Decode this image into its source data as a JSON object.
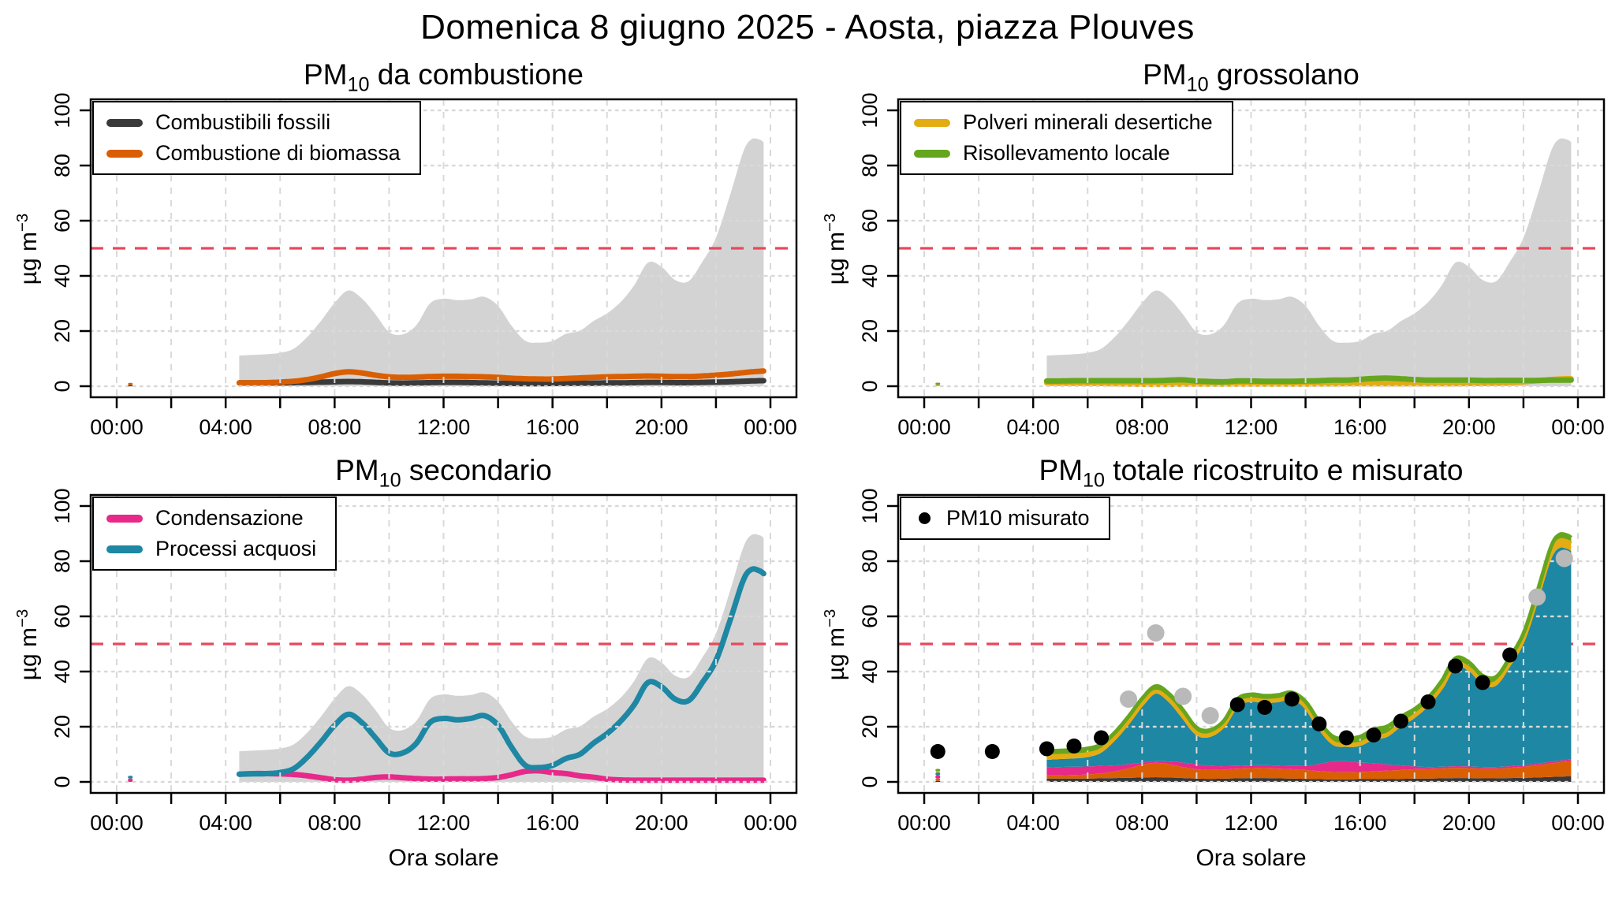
{
  "main_title": "Domenica 8 giugno 2025 - Aosta, piazza Plouves",
  "axis": {
    "x_label": "Ora solare",
    "y_label_base": "µg m",
    "y_label_exp": "−3",
    "y_ticks": [
      0,
      20,
      40,
      60,
      80,
      100
    ],
    "y_max": 100,
    "x_tick_hours": [
      0,
      2,
      4,
      6,
      8,
      10,
      12,
      14,
      16,
      18,
      20,
      22,
      24
    ],
    "x_label_hours": [
      0,
      4,
      8,
      12,
      16,
      20,
      24
    ],
    "x_tick_labels": [
      "00:00",
      "04:00",
      "08:00",
      "12:00",
      "16:00",
      "20:00",
      "00:00"
    ],
    "threshold_value": 50
  },
  "colors": {
    "envelope": "#d3d3d3",
    "threshold": "#e8485c",
    "grid": "#d9d9d9",
    "border": "#000000",
    "measured_black": "#000000",
    "measured_gray": "#b9b9b9"
  },
  "chart_data": {
    "type": "area",
    "x_hours": [
      4.5,
      5,
      5.5,
      6,
      6.5,
      7,
      7.5,
      8,
      8.5,
      9,
      9.5,
      10,
      10.5,
      11,
      11.5,
      12,
      12.5,
      13,
      13.5,
      14,
      14.5,
      15,
      15.5,
      16,
      16.5,
      17,
      17.5,
      18,
      18.5,
      19,
      19.5,
      20,
      20.5,
      21,
      21.5,
      22,
      22.5,
      23,
      23.3,
      23.6,
      23.75
    ],
    "series": {
      "fossili": {
        "label": "Combustibili fossili",
        "color": "#3a3a3a",
        "values": [
          1.2,
          1.2,
          1.2,
          1.2,
          1.3,
          1.4,
          1.5,
          1.6,
          1.7,
          1.6,
          1.4,
          1.2,
          1.1,
          1.2,
          1.3,
          1.4,
          1.4,
          1.3,
          1.2,
          1.1,
          1.0,
          0.9,
          0.9,
          1.0,
          1.0,
          1.1,
          1.1,
          1.2,
          1.2,
          1.3,
          1.4,
          1.4,
          1.3,
          1.3,
          1.4,
          1.5,
          1.6,
          1.8,
          1.9,
          2.0,
          2.0
        ]
      },
      "biomassa": {
        "label": "Combustione di biomassa",
        "color": "#d95f02",
        "values": [
          1.2,
          1.2,
          1.3,
          1.5,
          1.8,
          2.4,
          3.4,
          4.6,
          5.2,
          4.8,
          4.0,
          3.4,
          3.2,
          3.3,
          3.5,
          3.6,
          3.6,
          3.5,
          3.4,
          3.2,
          2.9,
          2.7,
          2.6,
          2.6,
          2.8,
          3.0,
          3.2,
          3.4,
          3.5,
          3.6,
          3.7,
          3.6,
          3.5,
          3.5,
          3.7,
          4.0,
          4.4,
          4.9,
          5.2,
          5.4,
          5.5
        ]
      },
      "desertiche": {
        "label": "Polveri minerali desertiche",
        "color": "#e3ac13",
        "values": [
          1.2,
          1.15,
          1.1,
          1.1,
          1.0,
          0.9,
          0.8,
          0.7,
          0.7,
          0.7,
          0.75,
          0.8,
          0.8,
          0.8,
          0.8,
          0.8,
          0.8,
          0.8,
          0.8,
          0.8,
          0.85,
          0.85,
          0.9,
          0.9,
          0.9,
          0.9,
          0.9,
          0.9,
          0.9,
          0.9,
          0.9,
          1.0,
          1.0,
          1.1,
          1.3,
          1.6,
          2.0,
          2.4,
          2.6,
          2.7,
          2.7
        ]
      },
      "risollevamento": {
        "label": "Risollevamento locale",
        "color": "#66a61e",
        "values": [
          1.9,
          1.9,
          2.0,
          2.0,
          2.0,
          2.0,
          2.0,
          2.0,
          2.0,
          2.2,
          2.3,
          1.9,
          1.7,
          1.6,
          1.9,
          1.9,
          1.8,
          1.8,
          1.8,
          1.9,
          2.0,
          2.2,
          2.2,
          2.5,
          2.8,
          2.9,
          2.7,
          2.4,
          2.2,
          2.2,
          2.2,
          2.2,
          2.1,
          2.1,
          2.1,
          2.1,
          2.1,
          2.2,
          2.2,
          2.2,
          2.2
        ]
      },
      "condensazione": {
        "label": "Condensazione",
        "color": "#e7298a",
        "values": [
          2.8,
          3.0,
          3.0,
          2.9,
          2.7,
          2.2,
          1.5,
          0.8,
          0.6,
          1.0,
          1.6,
          1.8,
          1.5,
          1.2,
          1.0,
          1.0,
          1.1,
          1.1,
          1.2,
          1.6,
          2.6,
          3.8,
          4.0,
          3.4,
          3.0,
          2.2,
          1.7,
          1.0,
          0.7,
          0.6,
          0.6,
          0.6,
          0.6,
          0.6,
          0.6,
          0.6,
          0.6,
          0.6,
          0.6,
          0.6,
          0.6
        ]
      },
      "acquosi": {
        "label": "Processi acquosi",
        "color": "#1e87a3",
        "values": [
          2.8,
          2.9,
          3.0,
          3.4,
          4.8,
          9.0,
          14.5,
          20.5,
          24.5,
          21.5,
          16.0,
          10.5,
          10.5,
          14.0,
          21.5,
          23.0,
          22.5,
          23.0,
          24.0,
          20.5,
          12.5,
          6.0,
          5.2,
          6.0,
          8.5,
          10.0,
          14.0,
          17.5,
          22.0,
          28.0,
          36.0,
          34.5,
          30.0,
          29.5,
          36.0,
          44.0,
          58.0,
          73.0,
          77.0,
          76.5,
          75.5
        ]
      }
    },
    "stack_order": [
      "fossili",
      "biomassa",
      "condensazione",
      "acquosi",
      "desertiche",
      "risollevamento"
    ],
    "early_point": {
      "hour": 0.5,
      "values": {
        "fossili": 0.4,
        "biomassa": 0.8,
        "condensazione": 1.2,
        "acquosi": 1.0,
        "desertiche": 0.5,
        "risollevamento": 0.8
      }
    },
    "measured": {
      "label": "PM10 misurato",
      "hours": [
        0.5,
        2.5,
        4.5,
        5.5,
        6.5,
        7.5,
        8.5,
        9.5,
        10.5,
        11.5,
        12.5,
        13.5,
        14.5,
        15.5,
        16.5,
        17.5,
        18.5,
        19.5,
        20.5,
        21.5,
        22.5,
        23.5
      ],
      "values": [
        11,
        11,
        12,
        13,
        16,
        30,
        54,
        31,
        24,
        28,
        27,
        30,
        21,
        16,
        17,
        22,
        29,
        42,
        36,
        46,
        67,
        81
      ],
      "flags": [
        "black",
        "black",
        "black",
        "black",
        "black",
        "gray",
        "gray",
        "gray",
        "gray",
        "black",
        "black",
        "black",
        "black",
        "black",
        "black",
        "black",
        "black",
        "black",
        "black",
        "black",
        "gray",
        "gray"
      ]
    },
    "panels": [
      {
        "title_pm": "PM",
        "title_sub": "10",
        "title_rest": " da combustione",
        "mode": "lines",
        "series": [
          "fossili",
          "biomassa"
        ],
        "envelope": true
      },
      {
        "title_pm": "PM",
        "title_sub": "10",
        "title_rest": " grossolano",
        "mode": "lines",
        "series": [
          "desertiche",
          "risollevamento"
        ],
        "envelope": true
      },
      {
        "title_pm": "PM",
        "title_sub": "10",
        "title_rest": " secondario",
        "mode": "lines",
        "series": [
          "condensazione",
          "acquosi"
        ],
        "envelope": true
      },
      {
        "title_pm": "PM",
        "title_sub": "10",
        "title_rest": " totale ricostruito e misurato",
        "mode": "stacked",
        "series": [
          "fossili",
          "biomassa",
          "condensazione",
          "acquosi",
          "desertiche",
          "risollevamento"
        ],
        "measured": true
      }
    ]
  }
}
